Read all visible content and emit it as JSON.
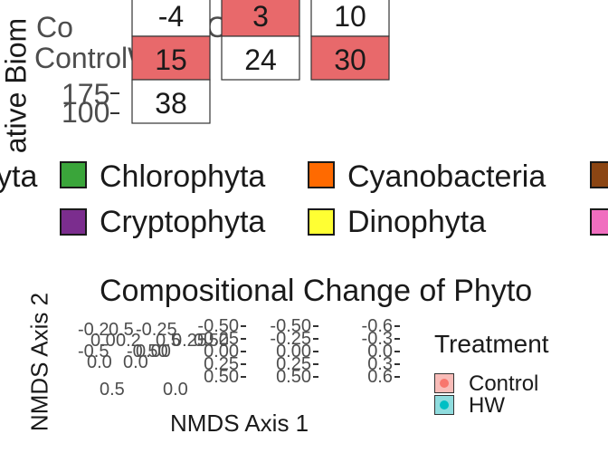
{
  "top_panel": {
    "ylabel_fragment": "ative Biom",
    "y_ticks_fragment": [
      "175",
      "100"
    ],
    "clutter_labels": [
      "Co",
      "Contro",
      "ControlW"
    ]
  },
  "legend": {
    "items": [
      {
        "label": "yta",
        "color": "#1b9e77",
        "partial": true
      },
      {
        "label": "Chlorophyta",
        "color": "#3aa53a"
      },
      {
        "label": "Cyanobacteria",
        "color": "#ff6a00"
      },
      {
        "label": "",
        "color": "#8b4513",
        "partial": true
      },
      {
        "label": "Cryptophyta",
        "color": "#7b2d8e"
      },
      {
        "label": "Dinophyta",
        "color": "#ffff33"
      },
      {
        "label": "",
        "color": "#f06ebf",
        "partial": true
      }
    ]
  },
  "nmds_panel": {
    "title": "Compositional Change of Phyto",
    "xlabel": "NMDS Axis 1",
    "ylabel": "NMDS Axis 2",
    "legend_title": "Treatment",
    "legend_items": [
      {
        "label": "Control",
        "fill": "#f8766d"
      },
      {
        "label": "HW",
        "fill": "#00bfc4"
      }
    ]
  },
  "chart_data": [
    {
      "type": "heatmap",
      "title": "",
      "ylabel": "ative Biom",
      "cells": [
        {
          "col": 0,
          "row": 0,
          "value": -4,
          "fill": "#ffffff"
        },
        {
          "col": 0,
          "row": 1,
          "value": 15,
          "fill": "#e8696b"
        },
        {
          "col": 0,
          "row": 2,
          "value": 38,
          "fill": "#ffffff"
        },
        {
          "col": 1,
          "row": 0,
          "value": 3,
          "fill": "#e8696b"
        },
        {
          "col": 1,
          "row": 1,
          "value": 24,
          "fill": "#ffffff"
        },
        {
          "col": 2,
          "row": 0,
          "value": 10,
          "fill": "#ffffff"
        },
        {
          "col": 2,
          "row": 1,
          "value": 30,
          "fill": "#e8696b"
        }
      ]
    },
    {
      "type": "scatter",
      "title": "Compositional Change of Phyto",
      "xlabel": "NMDS Axis 1",
      "ylabel": "NMDS Axis 2",
      "facets": [
        {
          "y_ticks": [
            "-0.50",
            "-0.25",
            "0.00",
            "0.25",
            "0.50"
          ]
        },
        {
          "y_ticks": [
            "-0.50",
            "-0.25",
            "0.00",
            "0.25",
            "0.50"
          ]
        },
        {
          "y_ticks": [
            "-0.6",
            "-0.3",
            "0.0",
            "0.3",
            "0.6"
          ]
        }
      ],
      "overlap_ticks": [
        "-0.2",
        "0.0",
        "-0.5",
        "0.0",
        "0.5",
        "0.2",
        "-0.50",
        "0.0",
        "-0.25",
        "0.5",
        "0.00",
        "0.25",
        "0.50",
        "0.5",
        "0.0"
      ]
    }
  ]
}
